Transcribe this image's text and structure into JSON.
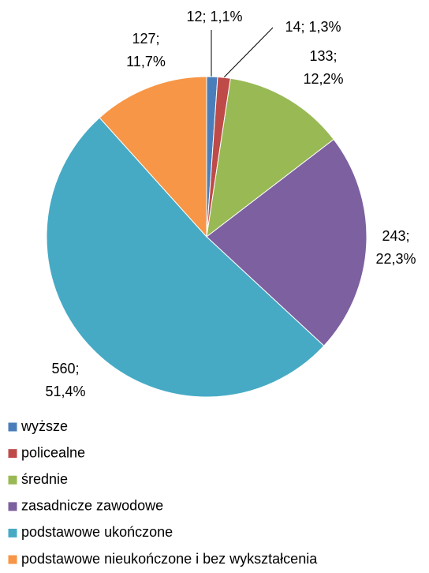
{
  "chart_data": {
    "type": "pie",
    "categories": [
      "wyższe",
      "policealne",
      "średnie",
      "zasadnicze zawodowe",
      "podstawowe ukończone",
      "podstawowe nieukończone i bez wykształcenia"
    ],
    "values": [
      12,
      14,
      133,
      243,
      560,
      127
    ],
    "value_labels": [
      "12; 1,1%",
      "14; 1,3%",
      "133; 12,2%",
      "243; 22,3%",
      "560; 51,4%",
      "127; 11,7%"
    ],
    "colors": [
      "#4a7ebb",
      "#be4b48",
      "#98b954",
      "#7d60a0",
      "#46aac5",
      "#f79646"
    ],
    "legend": "bottom"
  }
}
